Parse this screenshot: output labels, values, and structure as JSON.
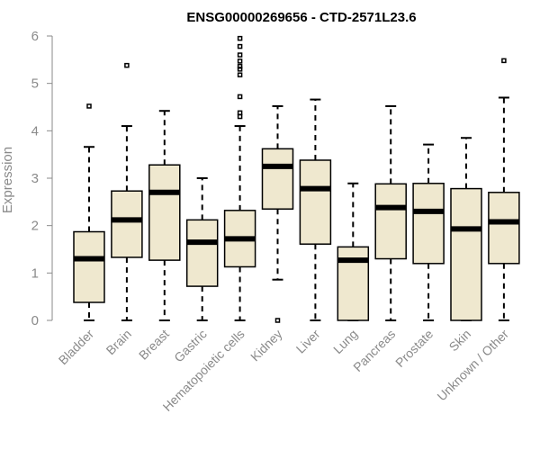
{
  "chart_data": {
    "type": "boxplot",
    "title": "ENSG00000269656 - CTD-2571L23.6",
    "xlabel": "",
    "ylabel": "Expression",
    "ylim": [
      0,
      6
    ],
    "yticks": [
      0,
      1,
      2,
      3,
      4,
      5,
      6
    ],
    "box_color": "#efe8cf",
    "axis_color": "#8a8a8a",
    "categories": [
      "Bladder",
      "Brain",
      "Breast",
      "Gastric",
      "Hematopoietic cells",
      "Kidney",
      "Liver",
      "Lung",
      "Pancreas",
      "Prostate",
      "Skin",
      "Unknown / Other"
    ],
    "boxes": [
      {
        "category": "Bladder",
        "whisker_low": 0.0,
        "q1": 0.38,
        "median": 1.3,
        "q3": 1.87,
        "whisker_high": 3.66,
        "outliers": [
          4.52
        ]
      },
      {
        "category": "Brain",
        "whisker_low": 0.0,
        "q1": 1.33,
        "median": 2.12,
        "q3": 2.73,
        "whisker_high": 4.1,
        "outliers": [
          5.38
        ]
      },
      {
        "category": "Breast",
        "whisker_low": 0.0,
        "q1": 1.27,
        "median": 2.7,
        "q3": 3.28,
        "whisker_high": 4.42,
        "outliers": []
      },
      {
        "category": "Gastric",
        "whisker_low": 0.0,
        "q1": 0.72,
        "median": 1.65,
        "q3": 2.12,
        "whisker_high": 3.0,
        "outliers": []
      },
      {
        "category": "Hematopoietic cells",
        "whisker_low": 0.0,
        "q1": 1.13,
        "median": 1.72,
        "q3": 2.32,
        "whisker_high": 4.1,
        "outliers": [
          4.3,
          4.38,
          4.72,
          5.18,
          5.3,
          5.36,
          5.47,
          5.6,
          5.78,
          5.95
        ]
      },
      {
        "category": "Kidney",
        "whisker_low": 0.86,
        "q1": 2.35,
        "median": 3.25,
        "q3": 3.62,
        "whisker_high": 4.52,
        "outliers": [
          0.0
        ]
      },
      {
        "category": "Liver",
        "whisker_low": 0.0,
        "q1": 1.61,
        "median": 2.78,
        "q3": 3.38,
        "whisker_high": 4.66,
        "outliers": []
      },
      {
        "category": "Lung",
        "whisker_low": 0.0,
        "q1": 0.0,
        "median": 1.27,
        "q3": 1.55,
        "whisker_high": 2.89,
        "outliers": []
      },
      {
        "category": "Pancreas",
        "whisker_low": 0.0,
        "q1": 1.3,
        "median": 2.38,
        "q3": 2.88,
        "whisker_high": 4.52,
        "outliers": []
      },
      {
        "category": "Prostate",
        "whisker_low": 0.0,
        "q1": 1.2,
        "median": 2.3,
        "q3": 2.89,
        "whisker_high": 3.71,
        "outliers": []
      },
      {
        "category": "Skin",
        "whisker_low": 0.0,
        "q1": 0.0,
        "median": 1.93,
        "q3": 2.78,
        "whisker_high": 3.85,
        "outliers": []
      },
      {
        "category": "Unknown / Other",
        "whisker_low": 0.0,
        "q1": 1.2,
        "median": 2.08,
        "q3": 2.7,
        "whisker_high": 4.7,
        "outliers": [
          5.48
        ]
      }
    ]
  }
}
